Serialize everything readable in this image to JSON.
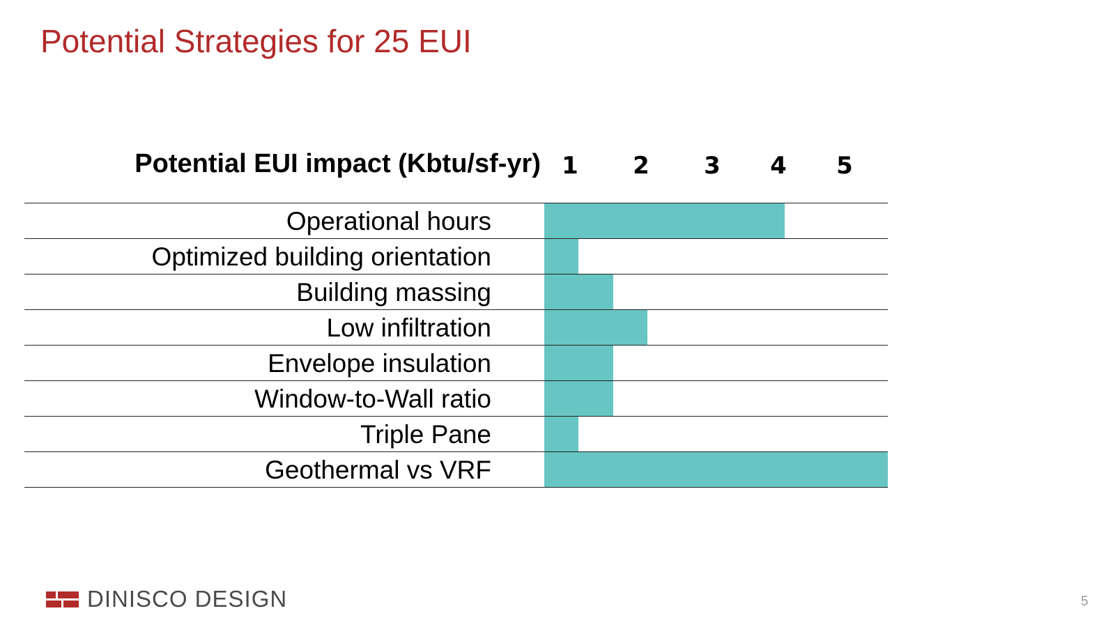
{
  "slide": {
    "title": "Potential Strategies for 25 EUI",
    "page_number": "5",
    "logo_text": "DINISCO DESIGN",
    "brand_color": "#b22a2a"
  },
  "chart_data": {
    "type": "bar",
    "orientation": "horizontal",
    "title": "",
    "header": "Potential EUI impact (Kbtu/sf-yr)",
    "tick_labels": [
      "1",
      "2",
      "3",
      "4",
      "5"
    ],
    "categories": [
      "Operational hours",
      "Optimized building orientation",
      "Building massing",
      "Low infiltration",
      "Envelope insulation",
      "Window-to-Wall ratio",
      "Triple Pane",
      "Geothermal vs VRF"
    ],
    "values": [
      3.5,
      0.5,
      1.0,
      1.5,
      1.0,
      1.0,
      0.5,
      5.0
    ],
    "xlim": [
      0,
      5
    ],
    "bar_color": "#67c6c3",
    "legend": "none",
    "grid": "horizontal row lines"
  }
}
